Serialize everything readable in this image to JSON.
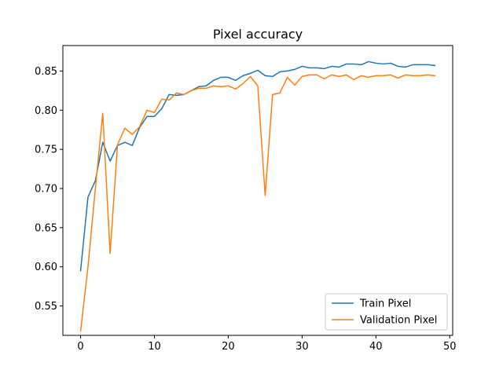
{
  "chart_data": {
    "type": "line",
    "title": "Pixel accuracy",
    "xlabel": "",
    "ylabel": "",
    "xlim": [
      -2.4,
      50.4
    ],
    "ylim": [
      0.5125,
      0.8825
    ],
    "xticks": [
      0,
      10,
      20,
      30,
      40,
      50
    ],
    "xtick_labels": [
      "0",
      "10",
      "20",
      "30",
      "40",
      "50"
    ],
    "yticks": [
      0.55,
      0.6,
      0.65,
      0.7,
      0.75,
      0.8,
      0.85
    ],
    "ytick_labels": [
      "0.55",
      "0.60",
      "0.65",
      "0.70",
      "0.75",
      "0.80",
      "0.85"
    ],
    "grid": false,
    "legend_position": "lower-right",
    "x": [
      0,
      1,
      2,
      3,
      4,
      5,
      6,
      7,
      8,
      9,
      10,
      11,
      12,
      13,
      14,
      15,
      16,
      17,
      18,
      19,
      20,
      21,
      22,
      23,
      24,
      25,
      26,
      27,
      28,
      29,
      30,
      31,
      32,
      33,
      34,
      35,
      36,
      37,
      38,
      39,
      40,
      41,
      42,
      43,
      44,
      45,
      46,
      47,
      48
    ],
    "series": [
      {
        "name": "Train Pixel",
        "color": "#1f77b4",
        "values": [
          0.595,
          0.689,
          0.71,
          0.759,
          0.735,
          0.755,
          0.759,
          0.755,
          0.778,
          0.792,
          0.792,
          0.802,
          0.82,
          0.819,
          0.82,
          0.825,
          0.83,
          0.831,
          0.838,
          0.842,
          0.842,
          0.838,
          0.844,
          0.847,
          0.851,
          0.844,
          0.843,
          0.849,
          0.85,
          0.852,
          0.856,
          0.854,
          0.854,
          0.853,
          0.856,
          0.855,
          0.859,
          0.859,
          0.858,
          0.862,
          0.86,
          0.859,
          0.86,
          0.856,
          0.855,
          0.858,
          0.858,
          0.858,
          0.857
        ]
      },
      {
        "name": "Validation Pixel",
        "color": "#ff7f0e",
        "values": [
          0.518,
          0.6,
          0.7,
          0.796,
          0.617,
          0.756,
          0.777,
          0.769,
          0.779,
          0.8,
          0.797,
          0.814,
          0.813,
          0.822,
          0.82,
          0.825,
          0.828,
          0.828,
          0.831,
          0.83,
          0.831,
          0.827,
          0.834,
          0.843,
          0.831,
          0.691,
          0.82,
          0.822,
          0.842,
          0.832,
          0.843,
          0.845,
          0.845,
          0.84,
          0.845,
          0.843,
          0.845,
          0.839,
          0.844,
          0.842,
          0.844,
          0.844,
          0.845,
          0.841,
          0.845,
          0.844,
          0.844,
          0.845,
          0.844
        ]
      }
    ]
  }
}
